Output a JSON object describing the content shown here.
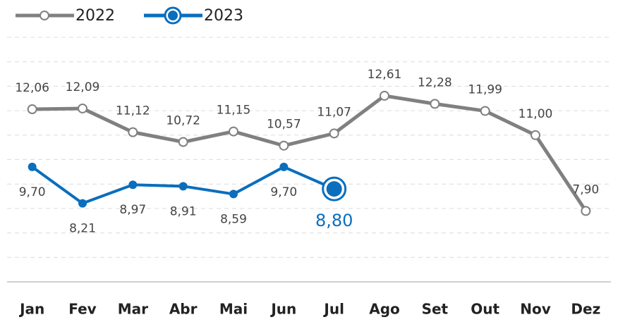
{
  "chart_data": {
    "type": "line",
    "categories": [
      "Jan",
      "Fev",
      "Mar",
      "Abr",
      "Mai",
      "Jun",
      "Jul",
      "Ago",
      "Set",
      "Out",
      "Nov",
      "Dez"
    ],
    "series": [
      {
        "name": "2022",
        "color": "#808080",
        "values": [
          12.06,
          12.09,
          11.12,
          10.72,
          11.15,
          10.57,
          11.07,
          12.61,
          12.28,
          11.99,
          11.0,
          7.9
        ],
        "value_labels": [
          "12,06",
          "12,09",
          "11,12",
          "10,72",
          "11,15",
          "10,57",
          "11,07",
          "12,61",
          "12,28",
          "11,99",
          "11,00",
          "7,90"
        ]
      },
      {
        "name": "2023",
        "color": "#0a6ebd",
        "values": [
          9.7,
          8.21,
          8.97,
          8.91,
          8.59,
          9.7,
          8.8,
          null,
          null,
          null,
          null,
          null
        ],
        "value_labels": [
          "9,70",
          "8,21",
          "8,97",
          "8,91",
          "8,59",
          "9,70",
          "8,80",
          null,
          null,
          null,
          null,
          null
        ]
      }
    ],
    "ylim": [
      5,
      15
    ],
    "yticks": [
      6,
      7,
      8,
      9,
      10,
      11,
      12,
      13,
      14,
      15
    ],
    "grid": true
  }
}
